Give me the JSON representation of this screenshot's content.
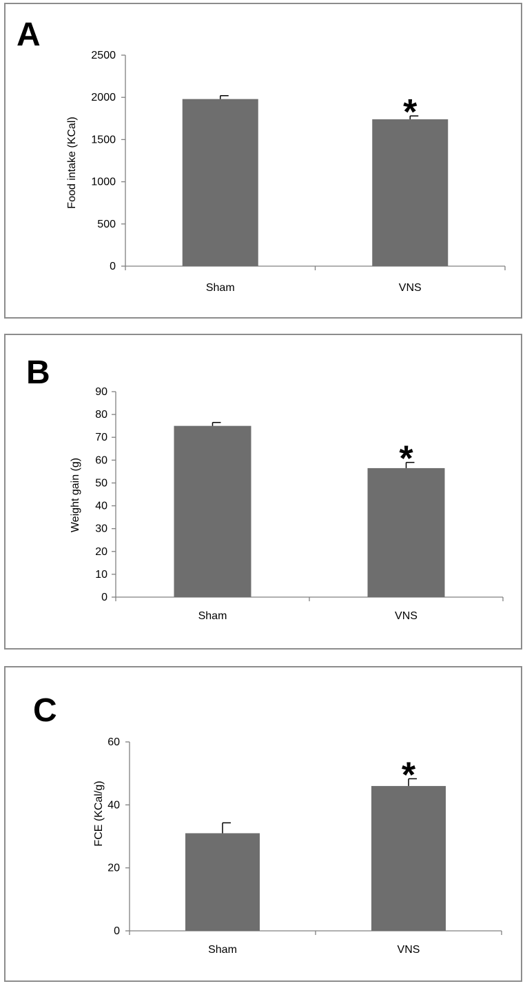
{
  "colors": {
    "bar": "#6e6e6e",
    "axis": "#808080",
    "panel_border": "#8c8c8c",
    "text": "#000000"
  },
  "chart_data": [
    {
      "type": "bar",
      "panel_label": "A",
      "title": "",
      "xlabel": "",
      "ylabel": "Food intake (KCal)",
      "categories": [
        "Sham",
        "VNS"
      ],
      "values": [
        1980,
        1740
      ],
      "errors": [
        40,
        40
      ],
      "ylim": [
        0,
        2500
      ],
      "yticks": [
        0,
        500,
        1000,
        1500,
        2000,
        2500
      ],
      "significance": [
        "",
        "*"
      ],
      "grid": false,
      "legend": "none"
    },
    {
      "type": "bar",
      "panel_label": "B",
      "title": "",
      "xlabel": "",
      "ylabel": "Weight gain (g)",
      "categories": [
        "Sham",
        "VNS"
      ],
      "values": [
        75,
        56.5
      ],
      "errors": [
        1.5,
        2.5
      ],
      "ylim": [
        0,
        90
      ],
      "yticks": [
        0,
        10,
        20,
        30,
        40,
        50,
        60,
        70,
        80,
        90
      ],
      "significance": [
        "",
        "*"
      ],
      "grid": false,
      "legend": "none"
    },
    {
      "type": "bar",
      "panel_label": "C",
      "title": "",
      "xlabel": "",
      "ylabel": "FCE (KCal/g)",
      "categories": [
        "Sham",
        "VNS"
      ],
      "values": [
        31,
        46
      ],
      "errors": [
        3.3,
        2.3
      ],
      "ylim": [
        0,
        60
      ],
      "yticks": [
        0,
        20,
        40,
        60
      ],
      "significance": [
        "",
        "*"
      ],
      "grid": false,
      "legend": "none"
    }
  ]
}
